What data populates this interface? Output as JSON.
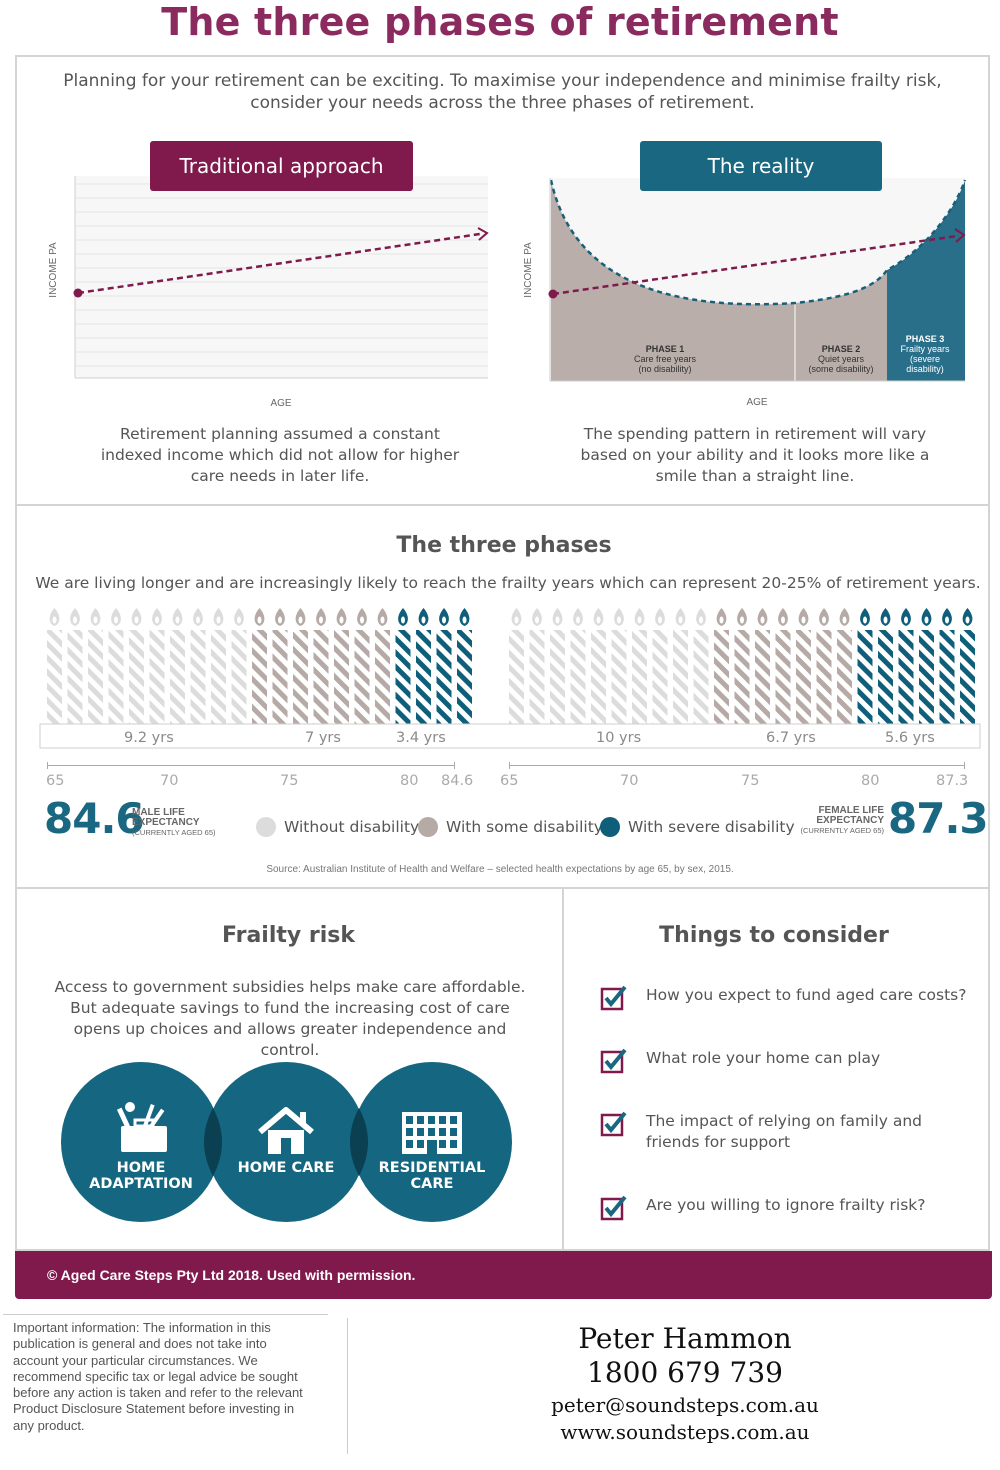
{
  "title": "The three phases of retirement",
  "intro": "Planning for your retirement can be exciting. To maximise your independence and minimise frailty risk, consider your needs across the three phases of retirement.",
  "traditional": {
    "label": "Traditional approach",
    "ylabel": "INCOME PA",
    "xlabel": "AGE",
    "caption": "Retirement planning assumed a constant indexed income which did not allow for higher care needs in later life."
  },
  "reality": {
    "label": "The reality",
    "ylabel": "INCOME PA",
    "xlabel": "AGE",
    "phase1": {
      "title": "PHASE 1",
      "line1": "Care free years",
      "line2": "(no disability)"
    },
    "phase2": {
      "title": "PHASE 2",
      "line1": "Quiet years",
      "line2": "(some disability)"
    },
    "phase3": {
      "title": "PHASE 3",
      "line1": "Frailty years",
      "line2": "(severe",
      "line3": "disability)"
    },
    "caption": "The spending pattern in retirement will vary based on your ability and it looks more like a smile than a straight line."
  },
  "phases": {
    "title": "The three phases",
    "subtitle": "We are living longer and are increasingly likely to reach the frailty years which can represent 20-25% of retirement years.",
    "male": {
      "years_without": "9.2 yrs",
      "years_some": "7 yrs",
      "years_severe": "3.4 yrs",
      "ticks": [
        "65",
        "70",
        "75",
        "80",
        "84.6"
      ],
      "number": "84.6",
      "label1": "MALE LIFE",
      "label2": "EXPECTANCY",
      "label3": "(CURRENTLY AGED 65)"
    },
    "female": {
      "years_without": "10 yrs",
      "years_some": "6.7 yrs",
      "years_severe": "5.6 yrs",
      "ticks": [
        "65",
        "70",
        "75",
        "80",
        "87.3"
      ],
      "number": "87.3",
      "label1": "FEMALE LIFE",
      "label2": "EXPECTANCY",
      "label3": "(CURRENTLY AGED 65)"
    },
    "legend": {
      "without": "Without disability",
      "some": "With some disability",
      "severe": "With severe disability"
    },
    "source": "Source: Australian Institute of Health and Welfare – selected health expectations by age 65, by sex, 2015."
  },
  "frailty": {
    "title": "Frailty risk",
    "text": "Access to government subsidies helps make care affordable. But adequate savings to fund the increasing cost of care opens up choices and allows greater independence and control.",
    "circle1_l1": "HOME",
    "circle1_l2": "ADAPTATION",
    "circle2_l1": "HOME CARE",
    "circle3_l1": "RESIDENTIAL",
    "circle3_l2": "CARE"
  },
  "consider": {
    "title": "Things to consider",
    "items": [
      "How you expect to fund aged care costs?",
      "What role your home can play",
      "The impact of relying on family and friends for support",
      "Are you willing to ignore frailty risk?"
    ]
  },
  "footer": "© Aged Care Steps Pty Ltd 2018. Used with permission.",
  "disclaimer": "Important information: The information in this publication is general and does not take into account your particular circumstances. We recommend specific tax or legal advice be sought before any action is taken and refer to the relevant Product Disclosure Statement before investing in any product.",
  "contact": {
    "name": "Peter Hammon",
    "phone": "1800 679 739",
    "email": "peter@soundsteps.com.au",
    "web": "www.soundsteps.com.au"
  },
  "colors": {
    "plum": "#801a4d",
    "teal": "#1a6782",
    "light": "#dcdcdc",
    "taupe": "#b5aaa6"
  }
}
